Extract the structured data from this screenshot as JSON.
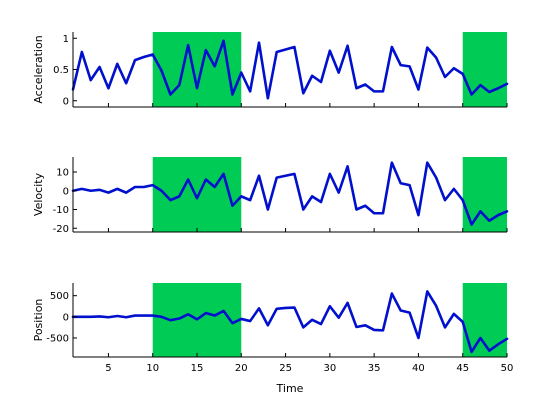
{
  "chart_data": [
    {
      "type": "line",
      "ylabel": "Acceleration",
      "xlabel": "",
      "xlim": [
        1,
        50
      ],
      "ylim": [
        -0.1,
        1.1
      ],
      "xticks": [
        5,
        10,
        15,
        20,
        25,
        30,
        35,
        40,
        45,
        50
      ],
      "xticklabels": [],
      "yticks": [
        0,
        0.5,
        1
      ],
      "yticklabels": [
        "0",
        "0.5",
        "1"
      ],
      "highlight_color": "#00cc55",
      "highlights": [
        [
          10,
          20
        ],
        [
          45,
          50
        ]
      ],
      "series": [
        {
          "color": "#0010cc",
          "x": [
            1,
            2,
            3,
            4,
            5,
            6,
            7,
            8,
            9,
            10,
            11,
            12,
            13,
            14,
            15,
            16,
            17,
            18,
            19,
            20,
            21,
            22,
            23,
            24,
            25,
            26,
            27,
            28,
            29,
            30,
            31,
            32,
            33,
            34,
            35,
            36,
            37,
            38,
            39,
            40,
            41,
            42,
            43,
            44,
            45,
            46,
            47,
            48,
            49,
            50
          ],
          "y": [
            0.18,
            0.78,
            0.33,
            0.54,
            0.2,
            0.59,
            0.28,
            0.65,
            0.7,
            0.74,
            0.48,
            0.1,
            0.25,
            0.89,
            0.2,
            0.81,
            0.55,
            0.96,
            0.1,
            0.45,
            0.15,
            0.93,
            0.04,
            0.78,
            0.82,
            0.86,
            0.12,
            0.4,
            0.3,
            0.8,
            0.45,
            0.88,
            0.2,
            0.26,
            0.15,
            0.15,
            0.86,
            0.57,
            0.55,
            0.18,
            0.85,
            0.69,
            0.38,
            0.52,
            0.43,
            0.1,
            0.25,
            0.14,
            0.2,
            0.27
          ]
        }
      ]
    },
    {
      "type": "line",
      "ylabel": "Velocity",
      "xlabel": "",
      "xlim": [
        1,
        50
      ],
      "ylim": [
        -22,
        18
      ],
      "xticks": [
        5,
        10,
        15,
        20,
        25,
        30,
        35,
        40,
        45,
        50
      ],
      "xticklabels": [],
      "yticks": [
        10,
        0,
        -10,
        -20
      ],
      "yticklabels": [
        "10",
        "0",
        "-10",
        "-20"
      ],
      "highlight_color": "#00cc55",
      "highlights": [
        [
          10,
          20
        ],
        [
          45,
          50
        ]
      ],
      "series": [
        {
          "color": "#0010cc",
          "x": [
            1,
            2,
            3,
            4,
            5,
            6,
            7,
            8,
            9,
            10,
            11,
            12,
            13,
            14,
            15,
            16,
            17,
            18,
            19,
            20,
            21,
            22,
            23,
            24,
            25,
            26,
            27,
            28,
            29,
            30,
            31,
            32,
            33,
            34,
            35,
            36,
            37,
            38,
            39,
            40,
            41,
            42,
            43,
            44,
            45,
            46,
            47,
            48,
            49,
            50
          ],
          "y": [
            0,
            1,
            0,
            0.5,
            -1,
            1,
            -1,
            2,
            2,
            3,
            0,
            -5,
            -3,
            6,
            -4,
            6,
            2,
            9,
            -8,
            -3,
            -5,
            8,
            -10,
            7,
            8,
            9,
            -10,
            -3,
            -6,
            9,
            -1,
            13,
            -10,
            -8,
            -12,
            -12,
            15,
            4,
            3,
            -13,
            15,
            7,
            -5,
            1,
            -5,
            -18,
            -11,
            -16,
            -13,
            -11
          ]
        }
      ]
    },
    {
      "type": "line",
      "ylabel": "Position",
      "xlabel": "Time",
      "xlim": [
        1,
        50
      ],
      "ylim": [
        -950,
        800
      ],
      "xticks": [
        5,
        10,
        15,
        20,
        25,
        30,
        35,
        40,
        45,
        50
      ],
      "xticklabels": [
        "5",
        "10",
        "15",
        "20",
        "25",
        "30",
        "35",
        "40",
        "45",
        "50"
      ],
      "yticks": [
        500,
        0,
        -500
      ],
      "yticklabels": [
        "500",
        "0",
        "-500"
      ],
      "highlight_color": "#00cc55",
      "highlights": [
        [
          10,
          20
        ],
        [
          45,
          50
        ]
      ],
      "series": [
        {
          "color": "#0010cc",
          "x": [
            1,
            2,
            3,
            4,
            5,
            6,
            7,
            8,
            9,
            10,
            11,
            12,
            13,
            14,
            15,
            16,
            17,
            18,
            19,
            20,
            21,
            22,
            23,
            24,
            25,
            26,
            27,
            28,
            29,
            30,
            31,
            32,
            33,
            34,
            35,
            36,
            37,
            38,
            39,
            40,
            41,
            42,
            43,
            44,
            45,
            46,
            47,
            48,
            49,
            50
          ],
          "y": [
            0,
            0,
            0,
            10,
            -10,
            20,
            -10,
            30,
            30,
            30,
            0,
            -80,
            -40,
            60,
            -60,
            90,
            30,
            140,
            -150,
            -50,
            -100,
            200,
            -200,
            190,
            210,
            220,
            -250,
            -70,
            -170,
            250,
            -20,
            330,
            -240,
            -200,
            -310,
            -320,
            550,
            150,
            100,
            -500,
            600,
            260,
            -250,
            70,
            -120,
            -830,
            -500,
            -800,
            -650,
            -520
          ]
        }
      ]
    }
  ]
}
